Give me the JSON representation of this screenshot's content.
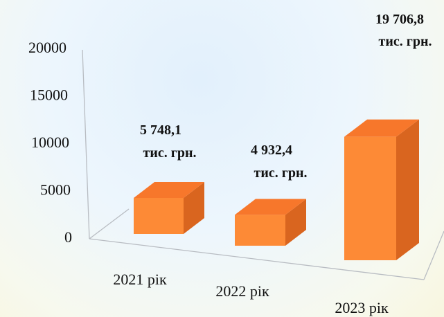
{
  "chart_data": {
    "type": "bar",
    "categories": [
      "2021 рік",
      "2022 рік",
      "2023 рік"
    ],
    "values": [
      5748.1,
      4932.4,
      19706.8
    ],
    "data_labels": [
      [
        "5 748,1",
        "тис. грн."
      ],
      [
        "4 932,4",
        "тис. грн."
      ],
      [
        "19 706,8",
        "тис. грн."
      ]
    ],
    "y_ticks": [
      "0",
      "5000",
      "10000",
      "15000",
      "20000"
    ],
    "ylim": [
      0,
      20000
    ],
    "grid": false,
    "legend": "none",
    "style": "3d-column"
  },
  "colors": {
    "bar_front": "#fd8a36",
    "bar_top": "#f7772b",
    "bar_side": "#d9651f"
  }
}
